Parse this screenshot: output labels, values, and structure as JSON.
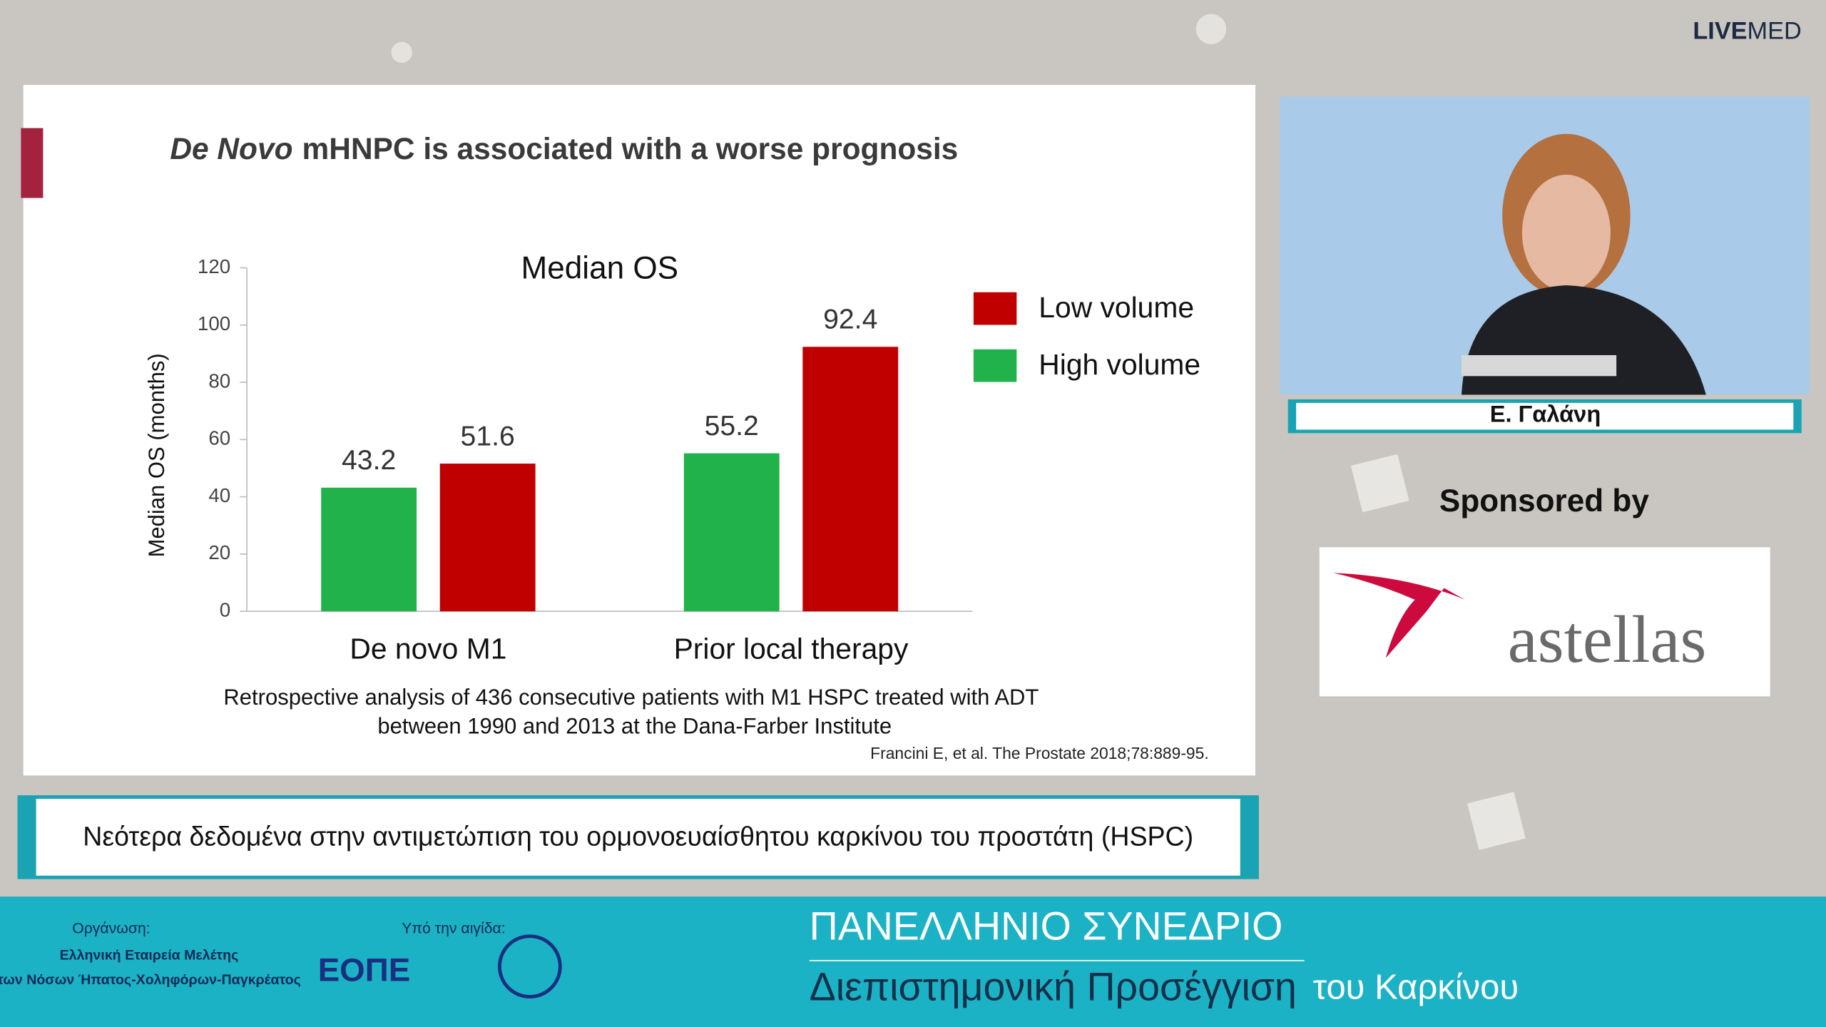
{
  "brand": {
    "bold": "LIVE",
    "light": "MED"
  },
  "slide": {
    "title_italic": "De Novo",
    "title_rest": "mHNPC is associated with a worse prognosis",
    "caption_lines": [
      "Retrospective analysis of 436 consecutive patients with M1 HSPC treated  with ADT",
      "between 1990 and 2013 at the Dana-Farber Institute"
    ],
    "citation": "Francini E, et al. The Prostate 2018;78:889-95."
  },
  "chart_data": {
    "type": "bar",
    "title": "Median OS",
    "y_label": "Median OS (months)",
    "categories": [
      "De novo M1",
      "Prior local therapy"
    ],
    "series": [
      {
        "name": "High volume",
        "color": "#22b24c",
        "values": [
          43.2,
          55.2
        ]
      },
      {
        "name": "Low volume",
        "color": "#c00000",
        "values": [
          51.6,
          92.4
        ]
      }
    ],
    "ylim": [
      0,
      120
    ],
    "yticks": [
      0,
      20,
      40,
      60,
      80,
      100,
      120
    ]
  },
  "speaker": {
    "name": "Ε. Γαλάνη"
  },
  "sponsor": {
    "label": "Sponsored by",
    "logo_text": "astellas"
  },
  "lower_third": {
    "title": "Νεότερα δεδομένα στην αντιμετώπιση του ορμονοευαίσθητου καρκίνου του προστάτη (HSPC)"
  },
  "footer": {
    "org_label": "Οργάνωση:",
    "org_lines": [
      "Ελληνική Εταιρεία Μελέτης",
      "των Νόσων Ήπατος-Χοληφόρων-Παγκρέατος"
    ],
    "aegis_label": "Υπό την αιγίδα:",
    "eope": "ΕΟΠΕ",
    "congress_line1": "ΠΑΝΕΛΛΗΝΙΟ ΣΥΝΕΔΡΙΟ",
    "congress_line2a": "Διεπιστημονική Προσέγγιση",
    "congress_line2b": "του Καρκίνου"
  }
}
